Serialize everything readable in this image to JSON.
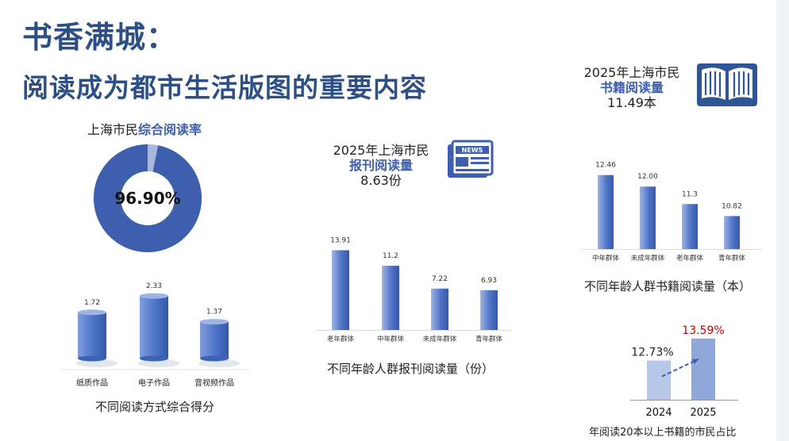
{
  "title_line1": "书香满城：",
  "title_line2": "阅读成为都市生活版图的重要内容",
  "reading_rate": {
    "label_prefix": "上海市民",
    "label_highlight": "综合阅读率",
    "value_text": "96.90%",
    "value": 96.9,
    "color": "#3d5fae"
  },
  "newspaper_stat": {
    "line1": "2025年上海市民",
    "highlight": "报刊阅读量",
    "value": "8.63份",
    "icon": "newspaper-icon"
  },
  "book_stat": {
    "line1": "2025年上海市民",
    "highlight": "书籍阅读量",
    "value": "11.49本",
    "icon": "open-book-icon"
  },
  "chart_data": [
    {
      "type": "bar",
      "id": "methods",
      "categories": [
        "纸质作品",
        "电子作品",
        "音视频作品"
      ],
      "values": [
        1.72,
        2.33,
        1.37
      ],
      "value_labels": [
        "1.72",
        "2.33",
        "1.37"
      ],
      "title": "不同阅读方式综合得分",
      "ylim": [
        0,
        2.6
      ]
    },
    {
      "type": "bar",
      "id": "newspapers",
      "categories": [
        "老年群体",
        "中年群体",
        "未成年群体",
        "青年群体"
      ],
      "values": [
        13.91,
        11.2,
        7.22,
        6.93
      ],
      "value_labels": [
        "13.91",
        "11.2",
        "7.22",
        "6.93"
      ],
      "title": "不同年龄人群报刊阅读量（份）",
      "ylim": [
        0,
        15.5
      ]
    },
    {
      "type": "bar",
      "id": "books",
      "categories": [
        "中年群体",
        "未成年群体",
        "老年群体",
        "青年群体"
      ],
      "values": [
        12.46,
        12.0,
        11.3,
        10.82
      ],
      "value_labels": [
        "12.46",
        "12.00",
        "11.3",
        "10.82"
      ],
      "title": "不同年龄人群书籍阅读量（本）",
      "ylim": [
        9.5,
        12.8
      ]
    },
    {
      "type": "bar",
      "id": "over20",
      "categories": [
        "2024",
        "2025"
      ],
      "values": [
        12.73,
        13.59
      ],
      "value_labels": [
        "12.73%",
        "13.59%"
      ],
      "title": "年阅读20本以上书籍的市民占比",
      "ylim": [
        11.2,
        13.8
      ],
      "colors": [
        "#b7c7e8",
        "#8fa8dc"
      ],
      "highlight_color": "#c00000"
    }
  ]
}
